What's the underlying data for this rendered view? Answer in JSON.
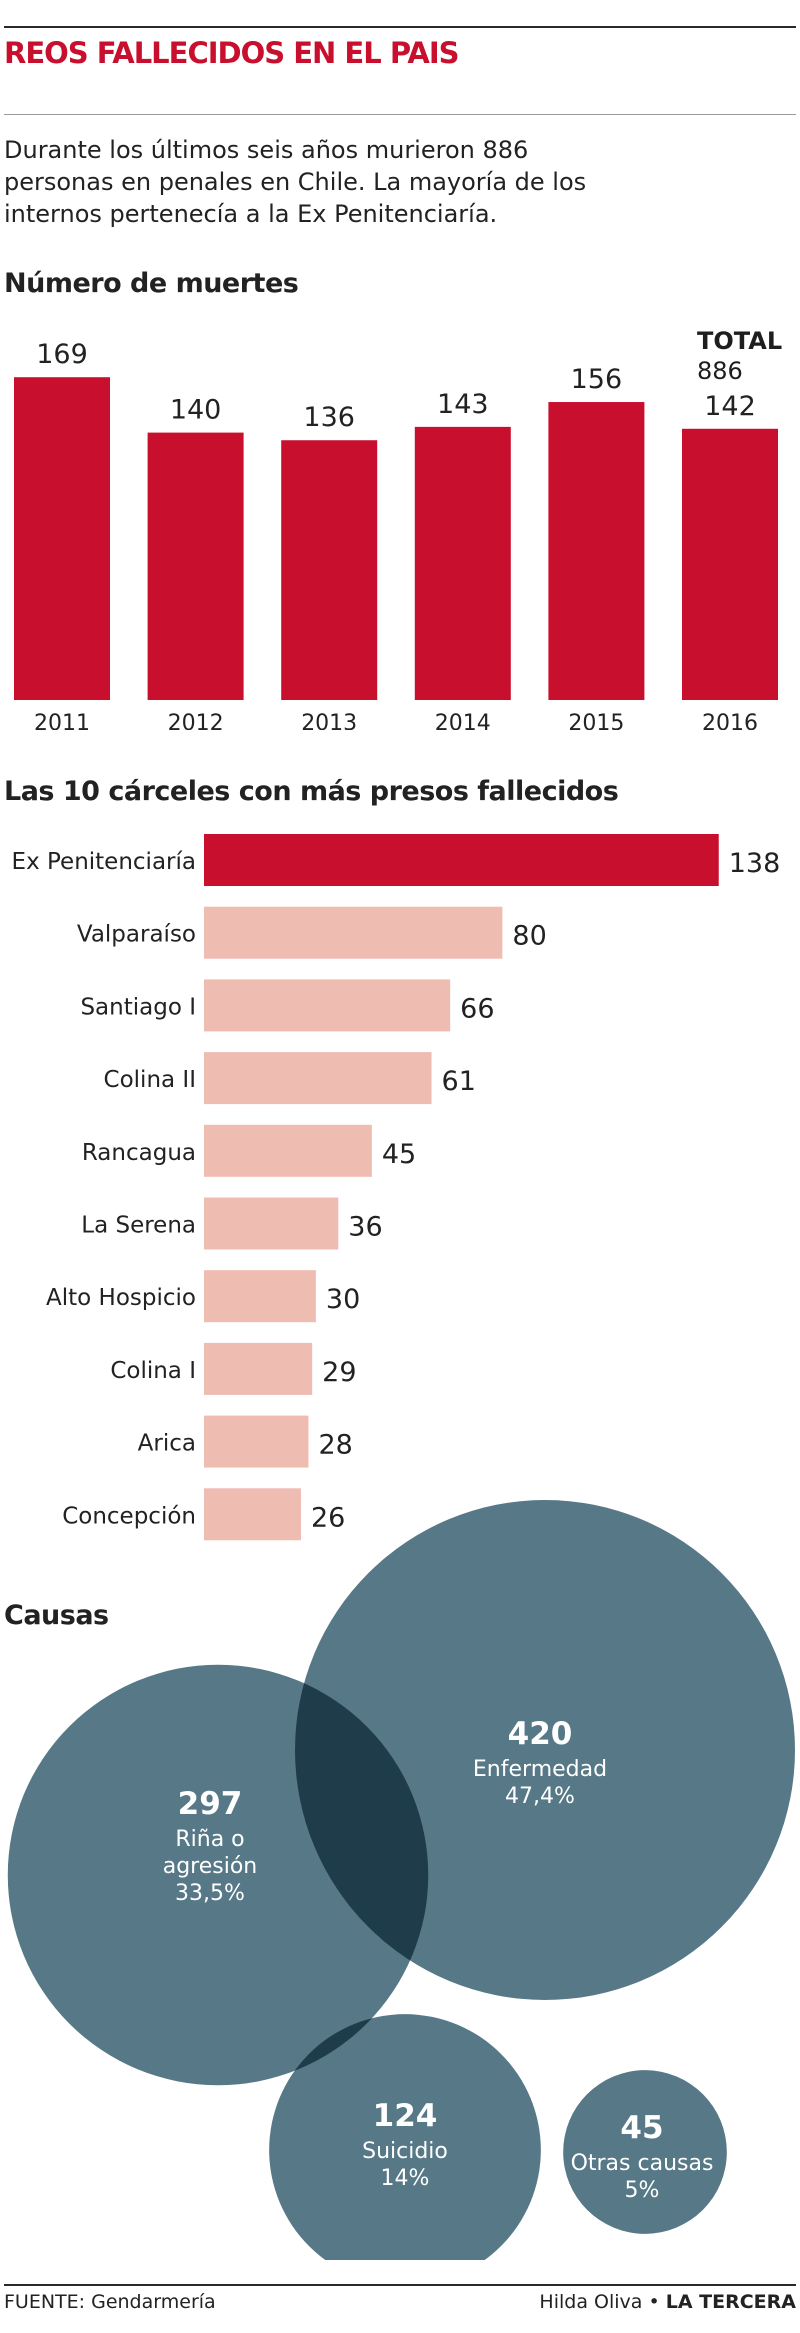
{
  "title": "REOS FALLECIDOS EN EL PAIS",
  "intro": "Durante los últimos seis años murieron 886 personas en penales en Chile. La mayoría de los internos pertenecía a la Ex Penitenciaría.",
  "colors": {
    "red": "#c8102e",
    "pink": "#efbcb2",
    "slate": "#567887",
    "overlap": "#1f3c4a"
  },
  "chart_data": [
    {
      "type": "bar",
      "title": "Número de muertes",
      "categories": [
        "2011",
        "2012",
        "2013",
        "2014",
        "2015",
        "2016"
      ],
      "values": [
        169,
        140,
        136,
        143,
        156,
        142
      ],
      "total_label": "TOTAL",
      "total_value": "886"
    },
    {
      "type": "bar",
      "orientation": "horizontal",
      "title": "Las 10 cárceles con más presos fallecidos",
      "categories": [
        "Ex Penitenciaría",
        "Valparaíso",
        "Santiago I",
        "Colina II",
        "Rancagua",
        "La Serena",
        "Alto Hospicio",
        "Colina I",
        "Arica",
        "Concepción"
      ],
      "values": [
        138,
        80,
        66,
        61,
        45,
        36,
        30,
        29,
        28,
        26
      ]
    },
    {
      "type": "bubble",
      "title": "Causas",
      "items": [
        {
          "value": 420,
          "label": "Enfermedad",
          "percent": "47,4%"
        },
        {
          "value": 297,
          "label": "Riña o agresión",
          "label_lines": [
            "Riña o",
            "agresión"
          ],
          "percent": "33,5%"
        },
        {
          "value": 124,
          "label": "Suicidio",
          "percent": "14%"
        },
        {
          "value": 45,
          "label": "Otras causas",
          "percent": "5%"
        }
      ]
    }
  ],
  "footer": {
    "source": "FUENTE: Gendarmería",
    "author": "Hilda Oliva",
    "separator": "•",
    "outlet": "LA TERCERA"
  }
}
